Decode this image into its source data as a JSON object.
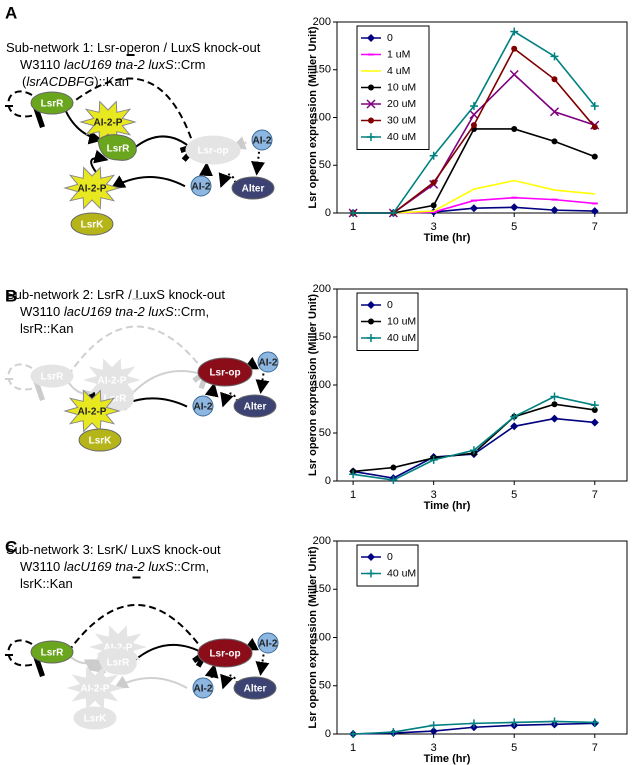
{
  "panels": [
    {
      "letter": "A",
      "caption": [
        [
          {
            "text": "Sub-network 1: Lsr-operon / LuxS knock-out"
          }
        ],
        [
          {
            "text": "W3110 "
          },
          {
            "text": "lacU169 tna-2 luxS",
            "style": "italic"
          },
          {
            "text": "::Crm"
          }
        ],
        [
          {
            "text": "("
          },
          {
            "text": "lsrACDBFG",
            "style": "italic"
          },
          {
            "text": ")::Kan"
          }
        ]
      ],
      "nodes": [
        "LsrR",
        "AI-2-P",
        "LsrR",
        "Lsr-op",
        "AI-2",
        "Alter",
        "AI-2",
        "AI-2-P",
        "LsrK"
      ]
    },
    {
      "letter": "B",
      "caption": [
        [
          {
            "text": "Sub-network 2: LsrR / LuxS knock-out"
          }
        ],
        [
          {
            "text": "W3110 "
          },
          {
            "text": "lacU169 tna-2 luxS",
            "style": "italic"
          },
          {
            "text": "::Crm,"
          }
        ],
        [
          {
            "text": "lsrR::Kan"
          }
        ]
      ],
      "nodes": [
        "LsrR",
        "AI-2-P",
        "LsrR",
        "Lsr-op",
        "AI-2",
        "Alter",
        "AI-2",
        "AI-2-P",
        "LsrK"
      ]
    },
    {
      "letter": "C",
      "caption": [
        [
          {
            "text": "Sub-network 3: LsrK/  LuxS knock-out"
          }
        ],
        [
          {
            "text": "W3110 "
          },
          {
            "text": "lacU169 tna-2 luxS",
            "style": "italic"
          },
          {
            "text": "::Crm,"
          }
        ],
        [
          {
            "text": "lsrK::Kan"
          }
        ]
      ],
      "nodes": [
        "LsrR",
        "AI-2-P",
        "LsrR",
        "Lsr-op",
        "AI-2",
        "Alter",
        "AI-2",
        "AI-2-P",
        "LsrK"
      ]
    }
  ],
  "chart_data": [
    {
      "type": "line",
      "x_label": "Time (hr)",
      "y_label": "Lsr operon expression (Miller Unit)",
      "x": [
        1,
        2,
        3,
        4,
        5,
        6,
        7
      ],
      "xlim": [
        0.6,
        7.8
      ],
      "xticks": [
        1,
        3,
        5,
        7
      ],
      "ylim": [
        0,
        200
      ],
      "yticks": [
        0,
        50,
        100,
        150,
        200
      ],
      "legend": "upper left",
      "series": [
        {
          "name": "0",
          "color": "#000080",
          "marker": "diamond",
          "values": [
            0,
            0,
            1,
            5,
            6,
            3,
            2
          ]
        },
        {
          "name": "1 uM",
          "color": "#ff00ff",
          "marker": "dash",
          "values": [
            0,
            0,
            1,
            13,
            16,
            14,
            10
          ]
        },
        {
          "name": "4 uM",
          "color": "#ffff00",
          "marker": "none",
          "values": [
            0,
            0,
            2,
            25,
            34,
            24,
            20
          ]
        },
        {
          "name": "10 uM",
          "color": "#000000",
          "marker": "circle",
          "values": [
            0,
            0,
            8,
            88,
            88,
            75,
            59
          ]
        },
        {
          "name": "20 uM",
          "color": "#800080",
          "marker": "x",
          "values": [
            0,
            0,
            30,
            103,
            145,
            106,
            92
          ]
        },
        {
          "name": "30 uM",
          "color": "#800000",
          "marker": "circle",
          "values": [
            0,
            0,
            32,
            92,
            172,
            140,
            90
          ]
        },
        {
          "name": "40 uM",
          "color": "#008080",
          "marker": "plus",
          "values": [
            0,
            0,
            60,
            112,
            190,
            164,
            112
          ]
        }
      ]
    },
    {
      "type": "line",
      "x_label": "Time (hr)",
      "y_label": "Lsr operon expression (Miller Unit)",
      "x": [
        1,
        2,
        3,
        4,
        5,
        6,
        7
      ],
      "xlim": [
        0.6,
        7.8
      ],
      "xticks": [
        1,
        3,
        5,
        7
      ],
      "ylim": [
        0,
        200
      ],
      "yticks": [
        0,
        50,
        100,
        150,
        200
      ],
      "legend": "upper left",
      "series": [
        {
          "name": "0",
          "color": "#000080",
          "marker": "diamond",
          "values": [
            10,
            3,
            25,
            28,
            57,
            65,
            61
          ]
        },
        {
          "name": "10 uM",
          "color": "#000000",
          "marker": "circle",
          "values": [
            10,
            14,
            24,
            29,
            67,
            80,
            74
          ]
        },
        {
          "name": "40 uM",
          "color": "#008080",
          "marker": "plus",
          "values": [
            7,
            1,
            22,
            32,
            67,
            88,
            79
          ]
        }
      ]
    },
    {
      "type": "line",
      "x_label": "Time (hr)",
      "y_label": "Lsr operon expression (Miller Unit)",
      "x": [
        1,
        2,
        3,
        4,
        5,
        6,
        7
      ],
      "xlim": [
        0.6,
        7.8
      ],
      "xticks": [
        1,
        3,
        5,
        7
      ],
      "ylim": [
        0,
        200
      ],
      "yticks": [
        0,
        50,
        100,
        150,
        200
      ],
      "legend": "upper left",
      "series": [
        {
          "name": "0",
          "color": "#000080",
          "marker": "diamond",
          "values": [
            0,
            1,
            3,
            7,
            9,
            10,
            11
          ]
        },
        {
          "name": "40 uM",
          "color": "#008080",
          "marker": "plus",
          "values": [
            0,
            2,
            9,
            11,
            12,
            13,
            12
          ]
        }
      ]
    }
  ]
}
